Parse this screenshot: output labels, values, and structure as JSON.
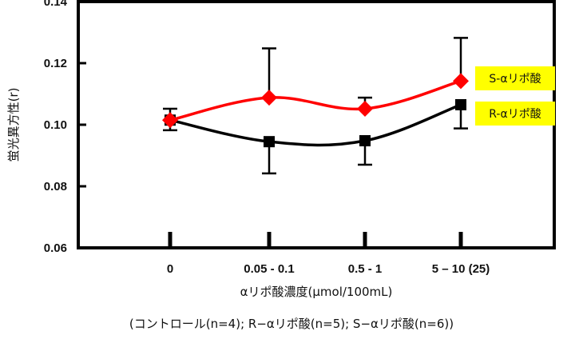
{
  "chart_data": {
    "type": "line",
    "title": "",
    "xlabel": "αリポ酸濃度(μmol/100mL)",
    "ylabel": "蛍光異方性(r)",
    "categories": [
      "0",
      "0.05 - 0.1",
      "0.5 - 1",
      "5 – 10 (25)"
    ],
    "ylim": [
      0.06,
      0.14
    ],
    "yticks": [
      "0.06",
      "0.08",
      "0.10",
      "0.12",
      "0.14"
    ],
    "grid": false,
    "legend_placement": "right",
    "series": [
      {
        "name": "S-αリポ酸",
        "color": "#ff0000",
        "marker": "diamond",
        "values": [
          0.1015,
          0.1088,
          0.1052,
          0.1142
        ],
        "err_upper": [
          0.1052,
          0.1248,
          0.1088,
          0.1282
        ],
        "err_lower": [
          null,
          null,
          null,
          null
        ]
      },
      {
        "name": "R-αリポ酸",
        "color": "#000000",
        "marker": "square",
        "values": [
          0.1015,
          0.0945,
          0.0948,
          0.1065
        ],
        "err_upper": [
          null,
          null,
          null,
          null
        ],
        "err_lower": [
          0.0982,
          0.0842,
          0.087,
          0.0988
        ]
      }
    ],
    "footnote": "(コントロール(n=4); R−αリポ酸(n=5); S−αリポ酸(n=6))",
    "legend_box_color": "#ffff00"
  }
}
